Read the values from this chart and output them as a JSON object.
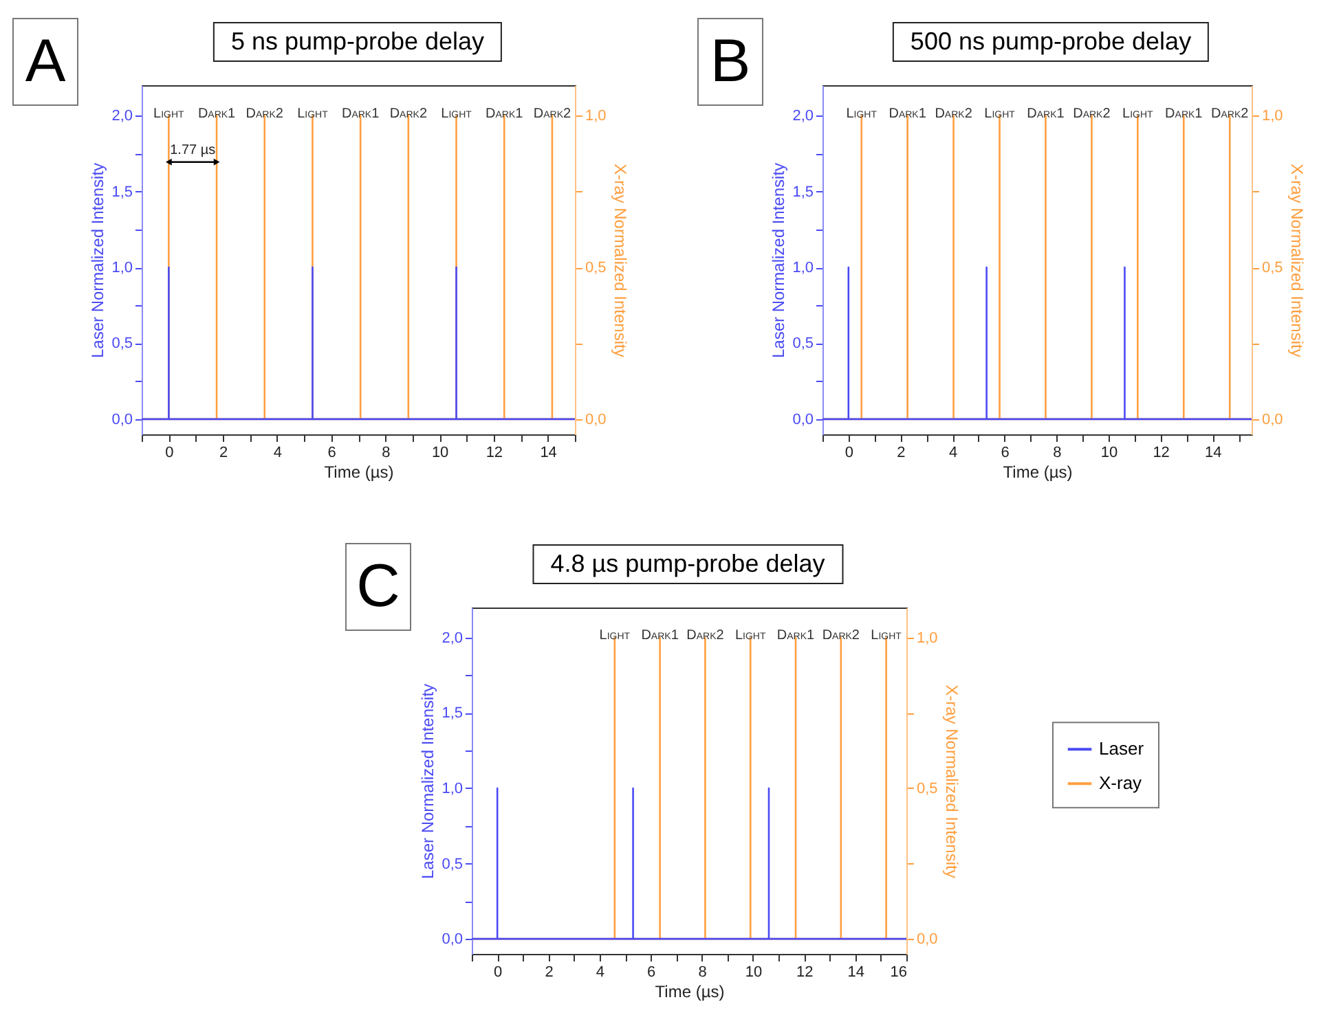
{
  "chart_data": [
    {
      "type": "line",
      "title": "5 ns pump-probe delay",
      "xlabel": "Time (µs)",
      "ylabel": "Laser Normalized Intensity",
      "y2label": "X-ray Normalized Intensity",
      "xlim": [
        -1,
        15
      ],
      "xticks": [
        {
          "value": -1,
          "label": null
        },
        0,
        {
          "value": 1,
          "label": null
        },
        2,
        {
          "value": 3,
          "label": null
        },
        4,
        {
          "value": 5,
          "label": null
        },
        6,
        {
          "value": 7,
          "label": null
        },
        8,
        {
          "value": 9,
          "label": null
        },
        10,
        {
          "value": 11,
          "label": null
        },
        12,
        {
          "value": 13,
          "label": null
        },
        14,
        {
          "value": 15,
          "label": null
        }
      ],
      "ylim": [
        -0.1,
        2.2
      ],
      "yticks": [
        {
          "value": 0,
          "label": "0,0"
        },
        {
          "value": 0.25,
          "label": null
        },
        {
          "value": 0.5,
          "label": "0,5"
        },
        {
          "value": 0.75,
          "label": null
        },
        {
          "value": 1,
          "label": "1,0"
        },
        {
          "value": 1.25,
          "label": null
        },
        {
          "value": 1.5,
          "label": "1,5"
        },
        {
          "value": 1.75,
          "label": null
        },
        {
          "value": 2,
          "label": "2,0"
        }
      ],
      "y2lim": [
        -0.05,
        1.1
      ],
      "y2ticks": [
        {
          "value": 0,
          "label": "0,0"
        },
        {
          "value": 0.25,
          "label": null
        },
        {
          "value": 0.5,
          "label": "0,5"
        },
        {
          "value": 0.75,
          "label": null
        },
        {
          "value": 1,
          "label": "1,0"
        }
      ],
      "series": [
        {
          "color": "#4b4bf5",
          "x": [
            -1,
            0,
            0,
            0,
            5.31,
            5.31,
            5.31,
            10.62,
            10.62,
            10.62,
            15
          ],
          "values": [
            0,
            0,
            1,
            0,
            0,
            1,
            0,
            0,
            1,
            0,
            0
          ]
        },
        {
          "color": "#ff9f40",
          "axis": "y2",
          "x": [
            -1,
            0,
            0,
            0,
            1.77,
            1.77,
            1.77,
            3.54,
            3.54,
            3.54,
            5.31,
            5.31,
            5.31,
            7.08,
            7.08,
            7.08,
            8.85,
            8.85,
            8.85,
            10.62,
            10.62,
            10.62,
            12.39,
            12.39,
            12.39,
            14.16,
            14.16,
            14.16,
            15
          ],
          "values": [
            0,
            0,
            1,
            0,
            0,
            1,
            0,
            0,
            1,
            0,
            0,
            1,
            0,
            0,
            1,
            0,
            0,
            1,
            0,
            0,
            1,
            0,
            0,
            1,
            0,
            0,
            1,
            0,
            0
          ]
        }
      ],
      "annotations": [
        "A",
        "Light",
        "Dark1",
        "Dark2",
        "Light",
        "Dark1",
        "Dark2",
        "Light",
        "Dark1",
        "Dark2",
        "1.77 µs"
      ]
    },
    {
      "type": "line",
      "title": "500 ns pump-probe delay",
      "xlabel": "Time (µs)",
      "ylabel": "Laser Normalized Intensity",
      "y2label": "X-ray Normalized Intensity",
      "xlim": [
        -1,
        15.5
      ],
      "xticks": [
        {
          "value": -1,
          "label": null
        },
        0,
        {
          "value": 1,
          "label": null
        },
        2,
        {
          "value": 3,
          "label": null
        },
        4,
        {
          "value": 5,
          "label": null
        },
        6,
        {
          "value": 7,
          "label": null
        },
        8,
        {
          "value": 9,
          "label": null
        },
        10,
        {
          "value": 11,
          "label": null
        },
        12,
        {
          "value": 13,
          "label": null
        },
        14,
        {
          "value": 15,
          "label": null
        }
      ],
      "ylim": [
        -0.1,
        2.2
      ],
      "yticks": [
        {
          "value": 0,
          "label": "0,0"
        },
        {
          "value": 0.25,
          "label": null
        },
        {
          "value": 0.5,
          "label": "0,5"
        },
        {
          "value": 0.75,
          "label": null
        },
        {
          "value": 1,
          "label": "1,0"
        },
        {
          "value": 1.25,
          "label": null
        },
        {
          "value": 1.5,
          "label": "1,5"
        },
        {
          "value": 1.75,
          "label": null
        },
        {
          "value": 2,
          "label": "2,0"
        }
      ],
      "y2lim": [
        -0.05,
        1.1
      ],
      "y2ticks": [
        {
          "value": 0,
          "label": "0,0"
        },
        {
          "value": 0.25,
          "label": null
        },
        {
          "value": 0.5,
          "label": "0,5"
        },
        {
          "value": 0.75,
          "label": null
        },
        {
          "value": 1,
          "label": "1,0"
        }
      ],
      "series": [
        {
          "color": "#4b4bf5",
          "x": [
            -1,
            0,
            0,
            0,
            5.31,
            5.31,
            5.31,
            10.62,
            10.62,
            10.62,
            15.5
          ],
          "values": [
            0,
            0,
            1,
            0,
            0,
            1,
            0,
            0,
            1,
            0,
            0
          ]
        },
        {
          "color": "#ff9f40",
          "axis": "y2",
          "x": [
            -1,
            0.5,
            0.5,
            0.5,
            2.27,
            2.27,
            2.27,
            4.04,
            4.04,
            4.04,
            5.81,
            5.81,
            5.81,
            7.58,
            7.58,
            7.58,
            9.35,
            9.35,
            9.35,
            11.12,
            11.12,
            11.12,
            12.89,
            12.89,
            12.89,
            14.66,
            14.66,
            14.66,
            15.5
          ],
          "values": [
            0,
            0,
            1,
            0,
            0,
            1,
            0,
            0,
            1,
            0,
            0,
            1,
            0,
            0,
            1,
            0,
            0,
            1,
            0,
            0,
            1,
            0,
            0,
            1,
            0,
            0,
            1,
            0,
            0
          ]
        }
      ],
      "annotations": [
        "B",
        "Light",
        "Dark1",
        "Dark2",
        "Light",
        "Dark1",
        "Dark2",
        "Light",
        "Dark1",
        "Dark2"
      ]
    },
    {
      "type": "line",
      "title": "4.8 µs pump-probe delay",
      "xlabel": "Time (µs)",
      "ylabel": "Laser Normalized Intensity",
      "y2label": "X-ray Normalized Intensity",
      "legend": "right",
      "xlim": [
        -1,
        16
      ],
      "xticks": [
        {
          "value": -1,
          "label": null
        },
        0,
        {
          "value": 1,
          "label": null
        },
        2,
        {
          "value": 3,
          "label": null
        },
        4,
        {
          "value": 5,
          "label": null
        },
        6,
        {
          "value": 7,
          "label": null
        },
        8,
        {
          "value": 9,
          "label": null
        },
        10,
        {
          "value": 11,
          "label": null
        },
        12,
        {
          "value": 13,
          "label": null
        },
        14,
        {
          "value": 15,
          "label": null
        },
        16
      ],
      "ylim": [
        -0.1,
        2.2
      ],
      "yticks": [
        {
          "value": 0,
          "label": "0,0"
        },
        {
          "value": 0.25,
          "label": null
        },
        {
          "value": 0.5,
          "label": "0,5"
        },
        {
          "value": 0.75,
          "label": null
        },
        {
          "value": 1,
          "label": "1,0"
        },
        {
          "value": 1.25,
          "label": null
        },
        {
          "value": 1.5,
          "label": "1,5"
        },
        {
          "value": 1.75,
          "label": null
        },
        {
          "value": 2,
          "label": "2,0"
        }
      ],
      "y2lim": [
        -0.05,
        1.1
      ],
      "y2ticks": [
        {
          "value": 0,
          "label": "0,0"
        },
        {
          "value": 0.25,
          "label": null
        },
        {
          "value": 0.5,
          "label": "0,5"
        },
        {
          "value": 0.75,
          "label": null
        },
        {
          "value": 1,
          "label": "1,0"
        }
      ],
      "series": [
        {
          "name": "Laser",
          "color": "#4b4bf5",
          "x": [
            -1,
            0,
            0,
            0,
            5.31,
            5.31,
            5.31,
            10.62,
            10.62,
            10.62,
            16
          ],
          "values": [
            0,
            0,
            1,
            0,
            0,
            1,
            0,
            0,
            1,
            0,
            0
          ]
        },
        {
          "name": "X-ray",
          "color": "#ff9f40",
          "axis": "y2",
          "x": [
            -1,
            4.59,
            4.59,
            4.59,
            6.36,
            6.36,
            6.36,
            8.13,
            8.13,
            8.13,
            9.9,
            9.9,
            9.9,
            11.67,
            11.67,
            11.67,
            13.44,
            13.44,
            13.44,
            15.21,
            15.21,
            15.21,
            16
          ],
          "values": [
            0,
            0,
            1,
            0,
            0,
            1,
            0,
            0,
            1,
            0,
            0,
            1,
            0,
            0,
            1,
            0,
            0,
            1,
            0,
            0,
            1,
            0,
            0
          ]
        }
      ],
      "annotations": [
        "C",
        "Light",
        "Dark1",
        "Dark2",
        "Light",
        "Dark1",
        "Dark2",
        "Light"
      ]
    }
  ]
}
